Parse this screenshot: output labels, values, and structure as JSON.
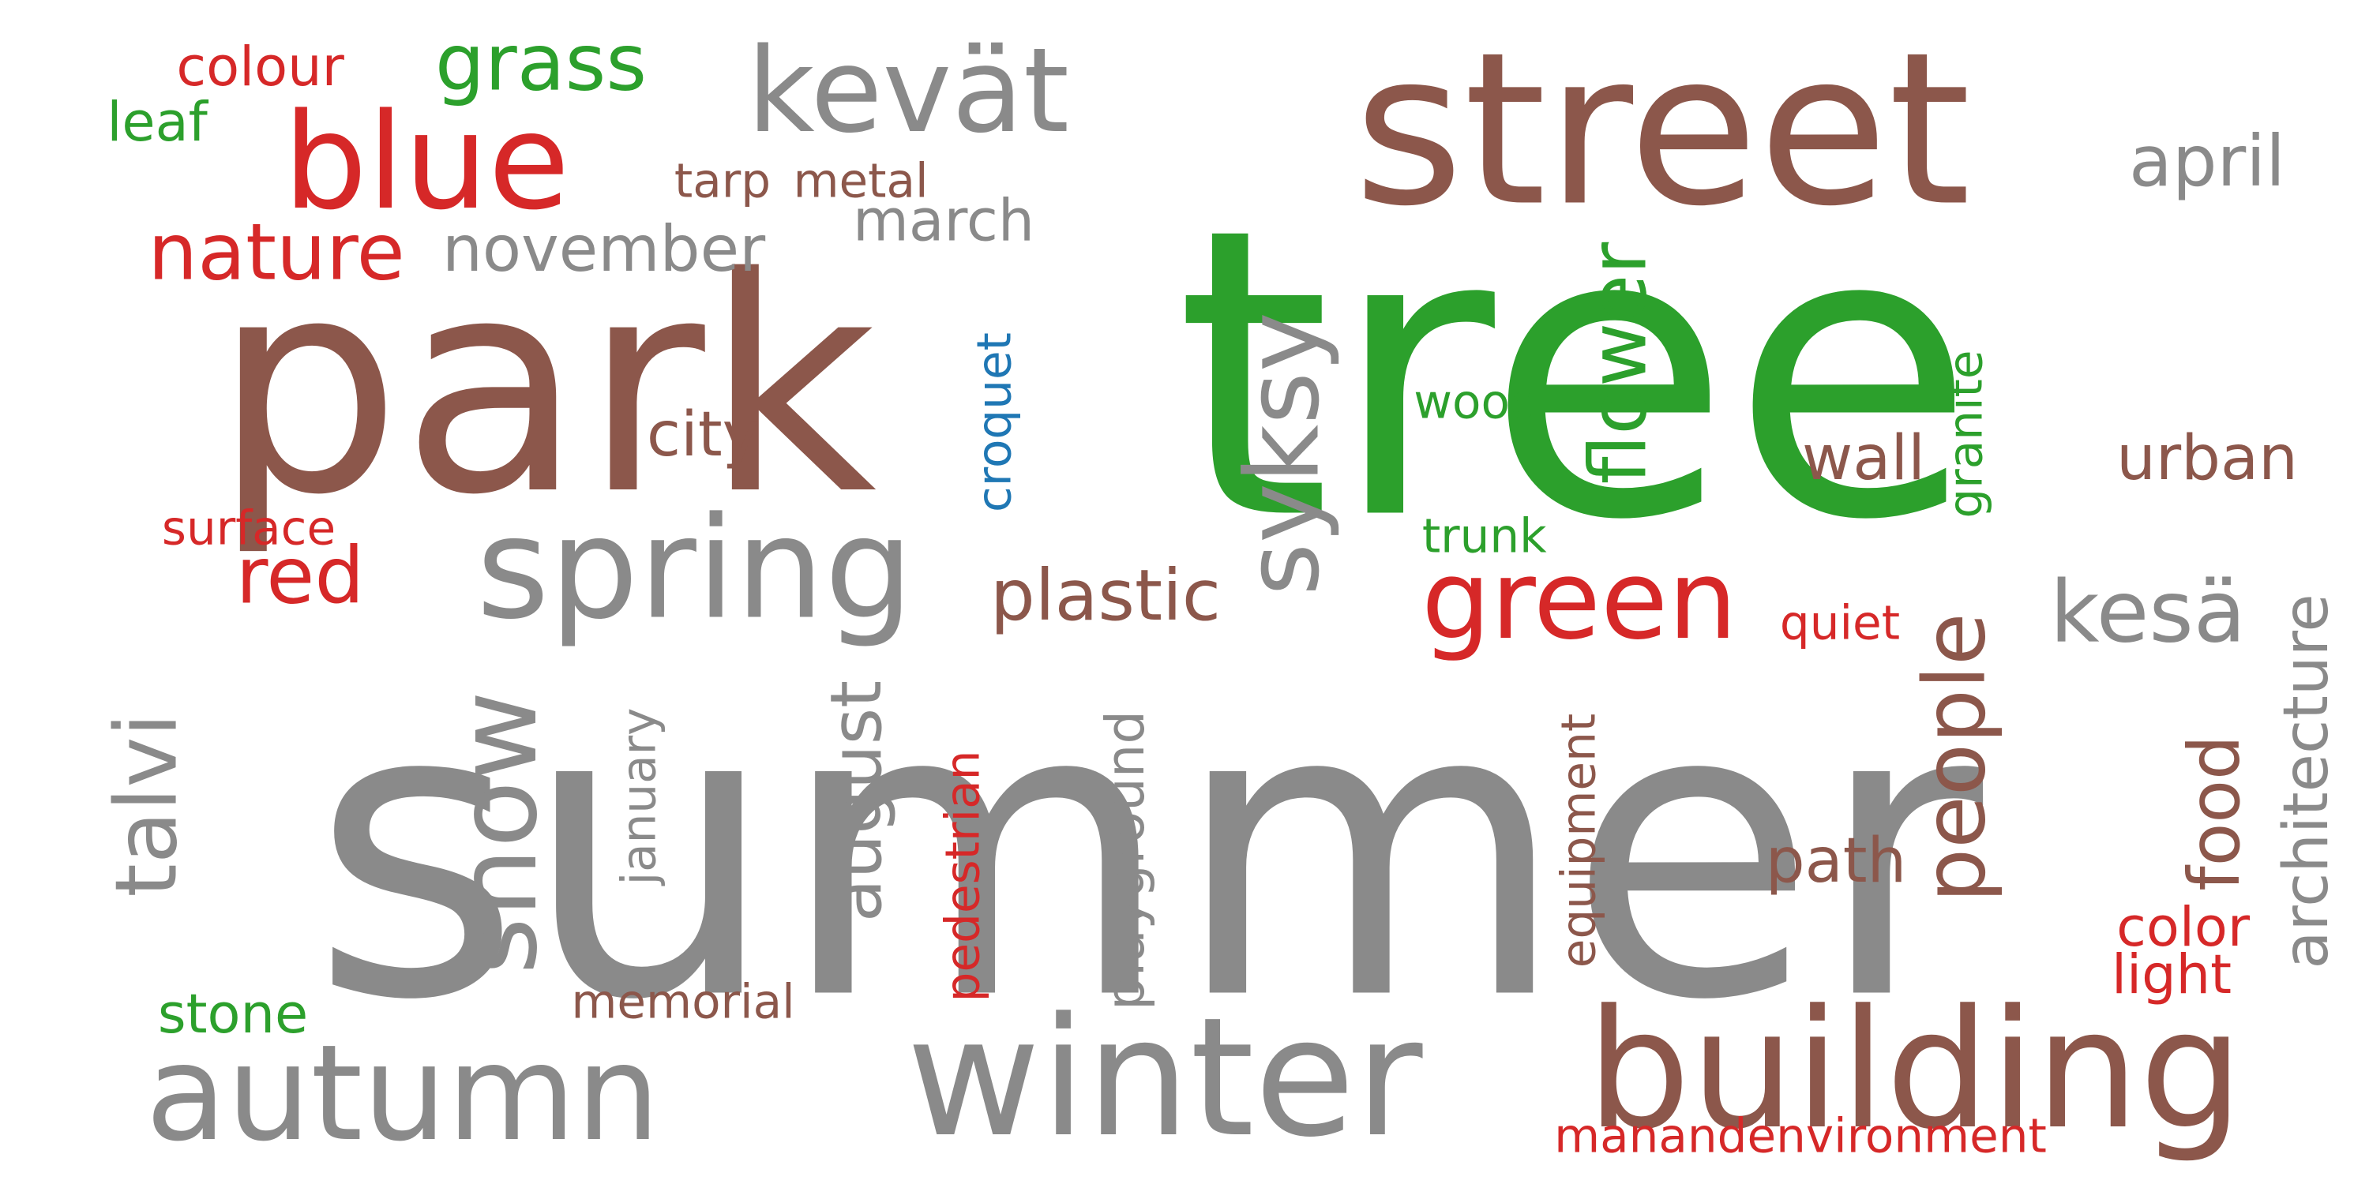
{
  "colors": {
    "gray": "#8a8a8a",
    "brown": "#8c574b",
    "green": "#2ca02c",
    "red": "#d62828",
    "blue": "#1f77b4"
  },
  "words": [
    {
      "id": "summer",
      "text": "summer",
      "color": "gray"
    },
    {
      "id": "tree",
      "text": "tree",
      "color": "green"
    },
    {
      "id": "park",
      "text": "park",
      "color": "brown"
    },
    {
      "id": "street",
      "text": "street",
      "color": "brown"
    },
    {
      "id": "winter",
      "text": "winter",
      "color": "gray"
    },
    {
      "id": "building",
      "text": "building",
      "color": "brown"
    },
    {
      "id": "autumn",
      "text": "autumn",
      "color": "gray"
    },
    {
      "id": "spring",
      "text": "spring",
      "color": "gray"
    },
    {
      "id": "blue",
      "text": "blue",
      "color": "red"
    },
    {
      "id": "kevat",
      "text": "kevät",
      "color": "gray"
    },
    {
      "id": "snow",
      "text": "snow",
      "color": "gray"
    },
    {
      "id": "syksy",
      "text": "syksy",
      "color": "gray"
    },
    {
      "id": "green",
      "text": "green",
      "color": "red"
    },
    {
      "id": "grass",
      "text": "grass",
      "color": "green"
    },
    {
      "id": "nature",
      "text": "nature",
      "color": "red"
    },
    {
      "id": "red",
      "text": "red",
      "color": "red"
    },
    {
      "id": "talvi",
      "text": "talvi",
      "color": "gray"
    },
    {
      "id": "people",
      "text": "people",
      "color": "brown"
    },
    {
      "id": "flower",
      "text": "flower",
      "color": "green"
    },
    {
      "id": "kesa",
      "text": "kesä",
      "color": "gray"
    },
    {
      "id": "november",
      "text": "november",
      "color": "gray"
    },
    {
      "id": "plastic",
      "text": "plastic",
      "color": "brown"
    },
    {
      "id": "august",
      "text": "august",
      "color": "gray"
    },
    {
      "id": "march",
      "text": "march",
      "color": "gray"
    },
    {
      "id": "city",
      "text": "city",
      "color": "brown"
    },
    {
      "id": "april",
      "text": "april",
      "color": "gray"
    },
    {
      "id": "food",
      "text": "food",
      "color": "brown"
    },
    {
      "id": "architecture",
      "text": "architecture",
      "color": "gray"
    },
    {
      "id": "wall",
      "text": "wall",
      "color": "brown"
    },
    {
      "id": "urban",
      "text": "urban",
      "color": "brown"
    },
    {
      "id": "path",
      "text": "path",
      "color": "brown"
    },
    {
      "id": "leaf",
      "text": "leaf",
      "color": "green"
    },
    {
      "id": "colour",
      "text": "colour",
      "color": "red"
    },
    {
      "id": "tarp",
      "text": "tarp",
      "color": "brown"
    },
    {
      "id": "metal",
      "text": "metal",
      "color": "brown"
    },
    {
      "id": "color",
      "text": "color",
      "color": "red"
    },
    {
      "id": "light",
      "text": "light",
      "color": "red"
    },
    {
      "id": "stone",
      "text": "stone",
      "color": "green"
    },
    {
      "id": "playground",
      "text": "playground",
      "color": "gray"
    },
    {
      "id": "croquet",
      "text": "croquet",
      "color": "blue"
    },
    {
      "id": "wood",
      "text": "wood",
      "color": "green"
    },
    {
      "id": "trunk",
      "text": "trunk",
      "color": "green"
    },
    {
      "id": "granite",
      "text": "granite",
      "color": "green"
    },
    {
      "id": "surface",
      "text": "surface",
      "color": "red"
    },
    {
      "id": "quiet",
      "text": "quiet",
      "color": "red"
    },
    {
      "id": "january",
      "text": "january",
      "color": "gray"
    },
    {
      "id": "pedestrian",
      "text": "pedestrian",
      "color": "red"
    },
    {
      "id": "equipment",
      "text": "equipment",
      "color": "brown"
    },
    {
      "id": "memorial",
      "text": "memorial",
      "color": "brown"
    },
    {
      "id": "manandenvironment",
      "text": "manandenvironment",
      "color": "red"
    }
  ]
}
